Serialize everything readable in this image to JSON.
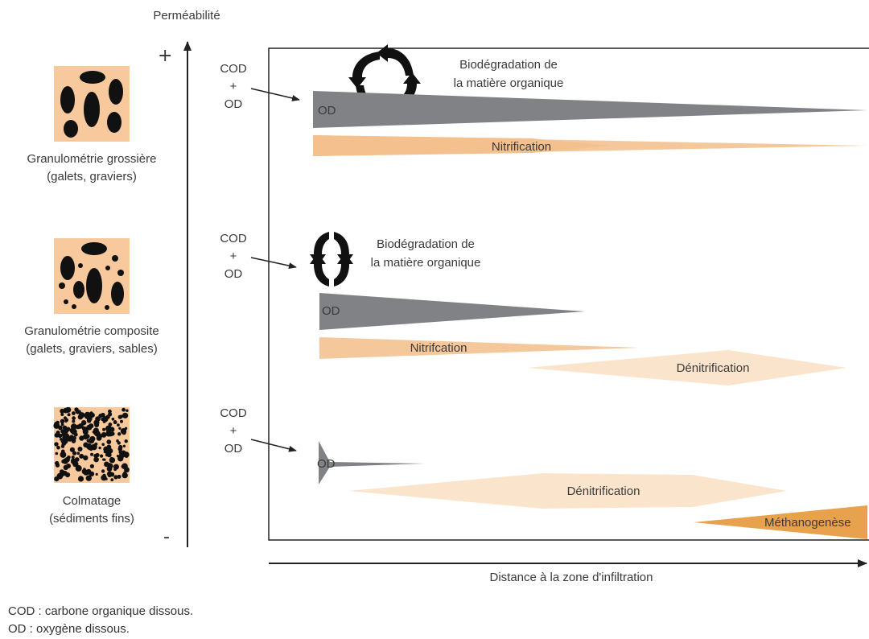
{
  "axis": {
    "y_title": "Perméabilité",
    "y_plus": "+",
    "y_minus": "-",
    "x_title": "Distance à la zone d'infiltration"
  },
  "rows": [
    {
      "soil_label_1": "Granulométrie grossière",
      "soil_label_2": "(galets, graviers)",
      "input_top": "COD",
      "input_mid": "+",
      "input_bottom": "OD",
      "cycle_label_1": "Biodégradation de",
      "cycle_label_2": "la matière organique",
      "od_label": "OD",
      "process_1": "Nitrification"
    },
    {
      "soil_label_1": "Granulométrie composite",
      "soil_label_2": "(galets, graviers, sables)",
      "input_top": "COD",
      "input_mid": "+",
      "input_bottom": "OD",
      "cycle_label_1": "Biodégradation de",
      "cycle_label_2": "la matière organique",
      "od_label": "OD",
      "process_1": "Nitrifcation",
      "process_2": "Dénitrification"
    },
    {
      "soil_label_1": "Colmatage",
      "soil_label_2": "(sédiments fins)",
      "input_top": "COD",
      "input_mid": "+",
      "input_bottom": "OD",
      "od_label": "OD",
      "process_1": "Dénitrification",
      "process_2": "Méthanogenèse"
    }
  ],
  "legend": {
    "line_1": "COD : carbone organique dissous.",
    "line_2": "OD : oxygène dissous."
  },
  "colors": {
    "od_wedge": "#808285",
    "nitrification": "#f5c89b",
    "denitrification": "#fbe4cc",
    "methanogenese": "#e8a24e",
    "soil_bg": "#f7c99d",
    "grain": "#111111",
    "frame": "#222222"
  }
}
